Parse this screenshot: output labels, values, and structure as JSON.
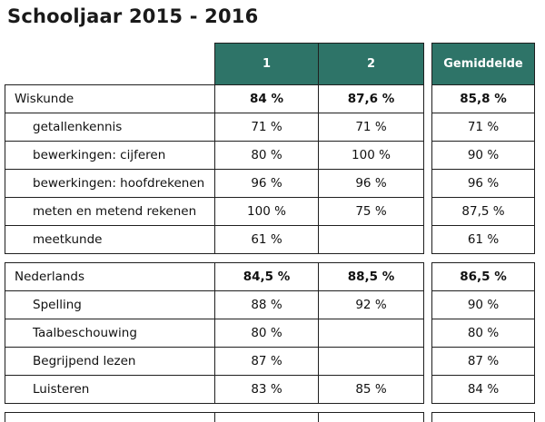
{
  "title": "Schooljaar 2015 - 2016",
  "header": {
    "col1": "1",
    "col2": "2",
    "avg": "Gemiddelde"
  },
  "colors": {
    "header_bg": "#2e7468",
    "header_text": "#ffffff"
  },
  "sections": [
    {
      "name": "Wiskunde",
      "v1": "84 %",
      "v2": "87,6 %",
      "avg": "85,8 %",
      "rows": [
        {
          "label": "getallenkennis",
          "v1": "71 %",
          "v2": "71 %",
          "avg": "71 %"
        },
        {
          "label": "bewerkingen: cijferen",
          "v1": "80 %",
          "v2": "100 %",
          "avg": "90 %"
        },
        {
          "label": "bewerkingen: hoofdrekenen",
          "v1": "96 %",
          "v2": "96 %",
          "avg": "96 %"
        },
        {
          "label": "meten en metend rekenen",
          "v1": "100 %",
          "v2": "75 %",
          "avg": "87,5 %"
        },
        {
          "label": "meetkunde",
          "v1": "61 %",
          "v2": "",
          "avg": "61 %"
        }
      ]
    },
    {
      "name": "Nederlands",
      "v1": "84,5 %",
      "v2": "88,5 %",
      "avg": "86,5 %",
      "rows": [
        {
          "label": "Spelling",
          "v1": "88 %",
          "v2": "92 %",
          "avg": "90 %"
        },
        {
          "label": "Taalbeschouwing",
          "v1": "80 %",
          "v2": "",
          "avg": "80 %"
        },
        {
          "label": "Begrijpend lezen",
          "v1": "87 %",
          "v2": "",
          "avg": "87 %"
        },
        {
          "label": "Luisteren",
          "v1": "83 %",
          "v2": "85 %",
          "avg": "84 %"
        }
      ]
    }
  ]
}
